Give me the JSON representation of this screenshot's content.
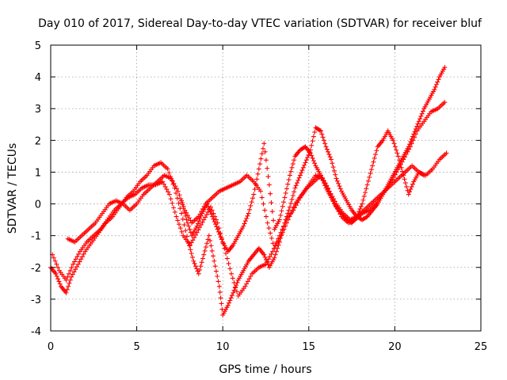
{
  "chart_data": {
    "type": "scatter",
    "title": "Day 010 of 2017, Sidereal Day-to-day VTEC variation (SDTVAR) for receiver bluf",
    "xlabel": "GPS time / hours",
    "ylabel": "SDTVAR / TECUs",
    "xlim": [
      0,
      25
    ],
    "ylim": [
      -4,
      5
    ],
    "xticks": [
      "0",
      "5",
      "10",
      "15",
      "20",
      "25"
    ],
    "yticks": [
      "-4",
      "-3",
      "-2",
      "-1",
      "0",
      "1",
      "2",
      "3",
      "4",
      "5"
    ],
    "grid": true,
    "legend": "none",
    "marker": "plus",
    "color": "#ff0000",
    "series": [
      {
        "x": [
          0.0,
          0.3,
          0.6,
          0.9,
          1.2,
          1.6,
          2.0,
          2.4,
          2.8,
          3.2,
          3.6,
          4.0,
          4.4,
          4.8,
          5.2,
          5.6,
          6.0,
          6.4,
          6.8,
          7.2,
          7.6,
          8.0,
          8.3,
          8.6,
          8.9,
          9.2,
          9.5,
          9.8,
          10.0,
          10.3,
          10.6,
          10.9,
          11.2,
          11.5,
          11.8,
          12.1,
          12.4,
          12.7,
          13.0,
          13.3,
          13.6,
          13.9,
          14.2,
          14.5,
          14.8,
          15.1,
          15.4,
          15.7,
          16.0,
          16.3,
          16.6,
          16.9,
          17.2,
          17.5,
          17.8,
          18.1,
          18.4,
          18.7,
          19.0,
          19.3,
          19.6,
          19.9,
          20.2,
          20.5,
          20.8,
          21.1,
          21.4,
          21.7,
          22.0,
          22.3,
          22.6,
          22.9
        ],
        "y": [
          -2.0,
          -2.2,
          -2.6,
          -2.8,
          -2.3,
          -1.9,
          -1.5,
          -1.2,
          -0.9,
          -0.6,
          -0.4,
          -0.1,
          0.2,
          0.4,
          0.7,
          0.9,
          1.2,
          1.3,
          1.1,
          0.5,
          -0.3,
          -1.2,
          -1.8,
          -2.2,
          -1.6,
          -1.0,
          -1.8,
          -2.6,
          -3.5,
          -3.2,
          -2.8,
          -2.4,
          -2.1,
          -1.8,
          -1.6,
          -1.4,
          -1.6,
          -2.0,
          -1.7,
          -1.2,
          -0.6,
          -0.1,
          0.5,
          0.9,
          1.3,
          1.7,
          2.4,
          2.3,
          1.8,
          1.4,
          0.8,
          0.4,
          0.1,
          -0.2,
          -0.4,
          -0.5,
          -0.4,
          -0.2,
          0.0,
          0.3,
          0.6,
          0.9,
          1.2,
          1.5,
          1.8,
          2.2,
          2.6,
          3.0,
          3.3,
          3.6,
          4.0,
          4.3
        ]
      },
      {
        "x": [
          0.1,
          0.5,
          0.9,
          1.3,
          1.7,
          2.1,
          2.5,
          2.9,
          3.3,
          3.7,
          4.1,
          4.5,
          4.9,
          5.3,
          5.7,
          6.1,
          6.5,
          6.9,
          7.3,
          7.7,
          8.1,
          8.5,
          8.9,
          9.3,
          9.7,
          10.1,
          10.5,
          10.9,
          11.3,
          11.7,
          12.1,
          12.5,
          12.9,
          13.3,
          13.7,
          14.1,
          14.5,
          14.9,
          15.3,
          15.7,
          16.1,
          16.5,
          16.9,
          17.3,
          17.7,
          18.1,
          18.5,
          18.9,
          19.3,
          19.7,
          20.1,
          20.5,
          20.9,
          21.3,
          21.7,
          22.1,
          22.5,
          22.9
        ],
        "y": [
          -1.6,
          -2.1,
          -2.4,
          -1.9,
          -1.5,
          -1.2,
          -1.0,
          -0.8,
          -0.5,
          -0.2,
          0.0,
          0.2,
          0.3,
          0.5,
          0.6,
          0.6,
          0.7,
          0.3,
          -0.4,
          -1.0,
          -1.3,
          -0.9,
          -0.5,
          -0.1,
          -0.6,
          -1.4,
          -2.2,
          -2.9,
          -2.6,
          -2.2,
          -2.0,
          -1.9,
          -1.5,
          -1.0,
          -0.5,
          -0.2,
          0.2,
          0.5,
          0.7,
          0.9,
          0.5,
          0.0,
          -0.4,
          -0.6,
          -0.5,
          -0.3,
          -0.2,
          0.0,
          0.3,
          0.6,
          1.0,
          1.4,
          1.8,
          2.3,
          2.6,
          2.9,
          3.0,
          3.2
        ]
      },
      {
        "x": [
          1.0,
          1.4,
          1.8,
          2.2,
          2.6,
          3.0,
          3.4,
          3.8,
          4.2,
          4.6,
          5.0,
          5.4,
          5.8,
          6.2,
          6.6,
          7.0,
          7.4,
          7.8,
          8.2,
          8.6,
          9.0,
          9.4,
          9.8,
          10.2,
          10.6,
          11.0,
          11.4,
          11.8,
          12.2,
          12.6,
          13.0,
          13.4,
          13.8,
          14.2,
          14.6,
          15.0,
          15.4,
          15.8,
          16.2,
          16.6,
          17.0,
          17.4,
          17.8,
          18.2,
          18.6,
          19.0,
          19.4,
          19.8,
          20.2,
          20.6,
          21.0,
          21.4,
          21.8,
          22.2,
          22.6,
          23.0
        ],
        "y": [
          -1.1,
          -1.2,
          -1.0,
          -0.8,
          -0.6,
          -0.3,
          0.0,
          0.1,
          0.0,
          -0.2,
          0.0,
          0.3,
          0.5,
          0.7,
          0.9,
          0.8,
          0.4,
          -0.2,
          -0.6,
          -0.4,
          0.0,
          0.2,
          0.4,
          0.5,
          0.6,
          0.7,
          0.9,
          0.7,
          0.4,
          -0.6,
          -1.4,
          -1.0,
          -0.5,
          0.0,
          0.3,
          0.6,
          0.9,
          0.8,
          0.4,
          0.0,
          -0.3,
          -0.5,
          -0.4,
          -0.2,
          0.0,
          0.2,
          0.4,
          0.6,
          0.8,
          1.0,
          1.2,
          1.0,
          0.9,
          1.1,
          1.4,
          1.6
        ]
      },
      {
        "x": [
          7.6,
          7.9,
          8.2,
          8.5,
          8.8,
          9.1,
          9.4,
          9.7,
          10.0,
          10.3,
          10.6,
          10.9,
          11.2,
          11.5,
          11.8,
          12.1,
          12.4,
          12.7,
          13.0,
          13.3,
          13.6,
          13.9,
          14.2,
          14.5,
          14.8,
          15.1,
          15.4,
          15.7,
          16.0,
          16.3,
          16.6,
          16.9,
          17.2,
          17.5,
          17.8,
          18.1,
          18.4,
          18.7,
          19.0,
          19.3,
          19.6,
          19.9,
          20.2,
          20.5,
          20.8,
          21.1,
          21.4,
          21.7
        ],
        "y": [
          0.1,
          -0.5,
          -1.0,
          -0.7,
          -0.3,
          0.0,
          -0.4,
          -0.8,
          -1.2,
          -1.5,
          -1.3,
          -1.0,
          -0.7,
          -0.3,
          0.3,
          1.1,
          1.9,
          0.6,
          -0.8,
          -0.5,
          0.2,
          0.9,
          1.5,
          1.7,
          1.8,
          1.6,
          1.2,
          0.9,
          0.5,
          0.2,
          -0.1,
          -0.3,
          -0.5,
          -0.6,
          -0.4,
          0.0,
          0.6,
          1.2,
          1.8,
          2.0,
          2.3,
          2.0,
          1.5,
          0.9,
          0.3,
          0.7,
          1.0,
          0.9
        ]
      }
    ]
  }
}
